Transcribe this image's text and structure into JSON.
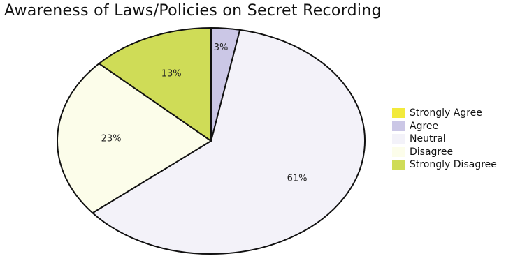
{
  "chart_data": {
    "type": "pie",
    "title": "Awareness of Laws/Policies on Secret Recording",
    "categories": [
      "Strongly Agree",
      "Agree",
      "Neutral",
      "Disagree",
      "Strongly Disagree"
    ],
    "values": [
      0,
      3,
      61,
      23,
      13
    ],
    "labels": [
      "",
      "3%",
      "61%",
      "23%",
      "13%"
    ],
    "colors": [
      "#f2ea3c",
      "#cbc7e6",
      "#f3f2f9",
      "#fcfdea",
      "#cfdc57"
    ],
    "legend_position": "right",
    "start_angle": "top",
    "direction": "clockwise"
  }
}
